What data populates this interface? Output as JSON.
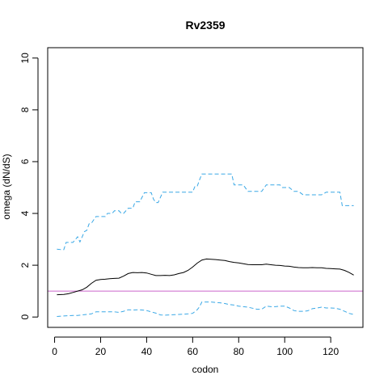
{
  "chart_data": {
    "type": "line",
    "title": "Rv2359",
    "xlabel": "codon",
    "ylabel": "omega (dN/dS)",
    "xlim": [
      -3,
      134
    ],
    "ylim": [
      -0.4,
      10.4
    ],
    "x_ticks": [
      0,
      20,
      40,
      60,
      80,
      100,
      120
    ],
    "y_ticks": [
      0,
      2,
      4,
      6,
      8,
      10
    ],
    "x_tick_labels": [
      "0",
      "20",
      "40",
      "60",
      "80",
      "100",
      "120"
    ],
    "y_tick_labels": [
      "0",
      "2",
      "4",
      "6",
      "8",
      "10"
    ],
    "grid": false,
    "reference_line": {
      "y": 1,
      "color": "#cc66cc"
    },
    "series": [
      {
        "role": "estimate",
        "color": "#000000",
        "dash": "solid",
        "x": [
          1,
          4,
          6,
          8,
          10,
          12,
          14,
          16,
          18,
          20,
          22,
          24,
          26,
          28,
          30,
          32,
          34,
          36,
          38,
          40,
          42,
          44,
          46,
          48,
          50,
          52,
          54,
          56,
          58,
          60,
          62,
          64,
          66,
          68,
          70,
          72,
          74,
          76,
          78,
          80,
          82,
          84,
          86,
          88,
          90,
          92,
          94,
          96,
          98,
          100,
          102,
          104,
          106,
          108,
          110,
          112,
          114,
          116,
          118,
          120,
          122,
          124,
          126,
          128,
          130
        ],
        "y": [
          0.86,
          0.87,
          0.9,
          0.95,
          1.0,
          1.05,
          1.15,
          1.3,
          1.42,
          1.45,
          1.46,
          1.48,
          1.49,
          1.5,
          1.58,
          1.68,
          1.72,
          1.71,
          1.72,
          1.7,
          1.65,
          1.6,
          1.6,
          1.61,
          1.6,
          1.63,
          1.68,
          1.72,
          1.8,
          1.93,
          2.08,
          2.2,
          2.24,
          2.23,
          2.22,
          2.2,
          2.18,
          2.14,
          2.11,
          2.09,
          2.06,
          2.03,
          2.02,
          2.02,
          2.02,
          2.04,
          2.02,
          2.0,
          1.99,
          1.97,
          1.96,
          1.93,
          1.91,
          1.9,
          1.9,
          1.91,
          1.9,
          1.9,
          1.88,
          1.87,
          1.86,
          1.85,
          1.8,
          1.72,
          1.62
        ]
      },
      {
        "role": "upper-bound",
        "color": "#3aa8e6",
        "dash": "dashed",
        "x": [
          1,
          3,
          4,
          5,
          7,
          8,
          10,
          11,
          12,
          13,
          14,
          15,
          16,
          17,
          18,
          20,
          22,
          23,
          25,
          26,
          28,
          29,
          30,
          32,
          34,
          35,
          37,
          39,
          42,
          43,
          44,
          45,
          47,
          48,
          50,
          52,
          54,
          56,
          58,
          60,
          61,
          62,
          63,
          64,
          66,
          68,
          70,
          72,
          74,
          76,
          77,
          78,
          80,
          82,
          84,
          86,
          88,
          90,
          92,
          94,
          96,
          98,
          99,
          100,
          102,
          104,
          106,
          108,
          110,
          112,
          114,
          116,
          118,
          120,
          122,
          124,
          125,
          126,
          128,
          130
        ],
        "y": [
          2.62,
          2.6,
          2.6,
          2.88,
          2.88,
          2.88,
          3.1,
          2.9,
          3.1,
          3.3,
          3.35,
          3.6,
          3.62,
          3.75,
          3.88,
          3.88,
          3.88,
          4.0,
          4.0,
          4.1,
          4.1,
          4.0,
          4.0,
          4.2,
          4.2,
          4.45,
          4.45,
          4.8,
          4.8,
          4.55,
          4.42,
          4.42,
          4.82,
          4.82,
          4.82,
          4.82,
          4.82,
          4.82,
          4.82,
          4.82,
          5.05,
          5.05,
          5.3,
          5.52,
          5.52,
          5.52,
          5.52,
          5.52,
          5.52,
          5.52,
          5.52,
          5.1,
          5.1,
          5.1,
          4.85,
          4.85,
          4.85,
          4.85,
          5.1,
          5.1,
          5.1,
          5.1,
          5.0,
          5.0,
          5.0,
          4.85,
          4.85,
          4.72,
          4.72,
          4.72,
          4.72,
          4.72,
          4.82,
          4.82,
          4.82,
          4.82,
          4.3,
          4.3,
          4.3,
          4.3
        ]
      },
      {
        "role": "lower-bound",
        "color": "#3aa8e6",
        "dash": "dashed",
        "x": [
          1,
          4,
          6,
          8,
          10,
          12,
          14,
          16,
          18,
          20,
          22,
          24,
          26,
          28,
          30,
          32,
          34,
          36,
          38,
          40,
          42,
          44,
          46,
          48,
          50,
          52,
          54,
          56,
          58,
          60,
          62,
          63,
          64,
          66,
          68,
          70,
          72,
          74,
          76,
          78,
          80,
          82,
          84,
          86,
          88,
          90,
          92,
          94,
          96,
          98,
          100,
          102,
          104,
          106,
          108,
          110,
          112,
          114,
          116,
          118,
          120,
          122,
          124,
          126,
          128,
          130
        ],
        "y": [
          0.02,
          0.04,
          0.05,
          0.06,
          0.06,
          0.08,
          0.1,
          0.12,
          0.2,
          0.2,
          0.2,
          0.2,
          0.2,
          0.18,
          0.22,
          0.28,
          0.27,
          0.28,
          0.27,
          0.25,
          0.2,
          0.15,
          0.08,
          0.07,
          0.08,
          0.09,
          0.1,
          0.11,
          0.12,
          0.14,
          0.28,
          0.4,
          0.58,
          0.58,
          0.58,
          0.56,
          0.55,
          0.52,
          0.48,
          0.46,
          0.42,
          0.4,
          0.38,
          0.34,
          0.3,
          0.3,
          0.42,
          0.4,
          0.4,
          0.42,
          0.42,
          0.35,
          0.25,
          0.22,
          0.22,
          0.24,
          0.32,
          0.35,
          0.38,
          0.35,
          0.35,
          0.34,
          0.3,
          0.22,
          0.14,
          0.1
        ]
      }
    ]
  }
}
